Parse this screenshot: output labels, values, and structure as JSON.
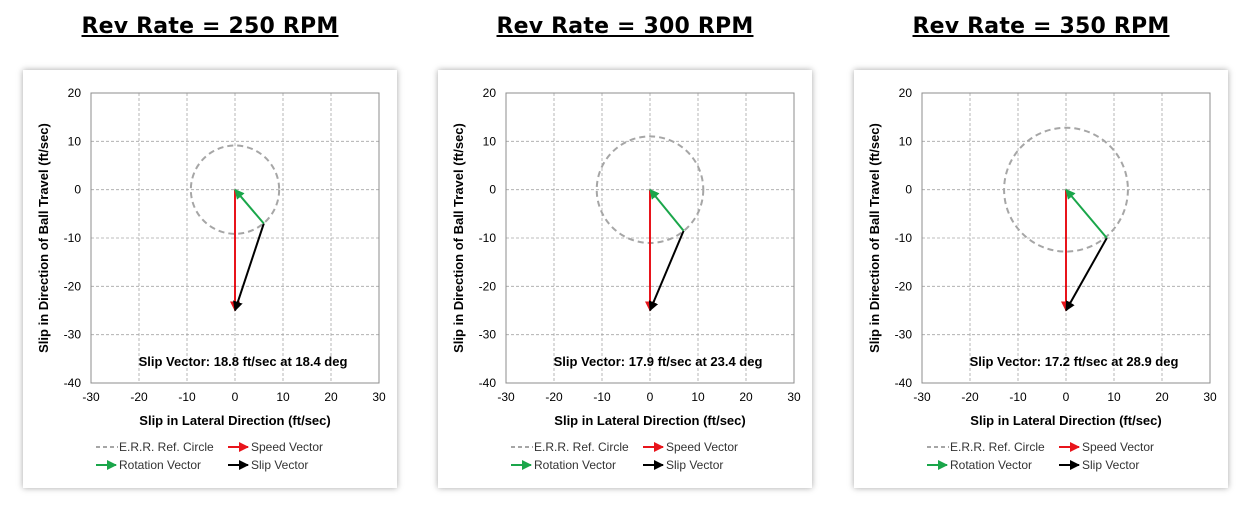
{
  "chart_data": [
    {
      "type": "scatter",
      "title": "Rev Rate = 250 RPM",
      "xlabel": "Slip in Lateral Direction (ft/sec)",
      "ylabel": "Slip in Direction of Ball Travel (ft/sec)",
      "xlim": [
        -30,
        30
      ],
      "ylim": [
        -40,
        20
      ],
      "xticks": [
        "-30",
        "-20",
        "-10",
        "0",
        "10",
        "20",
        "30"
      ],
      "yticks": [
        "20",
        "10",
        "0",
        "-10",
        "-20",
        "-30",
        "-40"
      ],
      "grid": true,
      "ref_circle_radius": 9.2,
      "speed_vector": {
        "from": [
          0,
          0
        ],
        "to": [
          0,
          -25
        ]
      },
      "rotation_vector": {
        "from": [
          6,
          -7
        ],
        "to": [
          0,
          0
        ]
      },
      "slip_vector": {
        "from": [
          6,
          -7
        ],
        "to": [
          0,
          -25
        ]
      },
      "annotation": "Slip Vector:  18.8  ft/sec at  18.4 deg",
      "legend": [
        "E.R.R. Ref. Circle",
        "Speed Vector",
        "Rotation Vector",
        "Slip Vector"
      ]
    },
    {
      "type": "scatter",
      "title": "Rev Rate = 300 RPM",
      "xlabel": "Slip in Lateral Direction (ft/sec)",
      "ylabel": "Slip in Direction of Ball Travel (ft/sec)",
      "xlim": [
        -30,
        30
      ],
      "ylim": [
        -40,
        20
      ],
      "xticks": [
        "-30",
        "-20",
        "-10",
        "0",
        "10",
        "20",
        "30"
      ],
      "yticks": [
        "20",
        "10",
        "0",
        "-10",
        "-20",
        "-30",
        "-40"
      ],
      "grid": true,
      "ref_circle_radius": 11.1,
      "speed_vector": {
        "from": [
          0,
          0
        ],
        "to": [
          0,
          -25
        ]
      },
      "rotation_vector": {
        "from": [
          7,
          -8.5
        ],
        "to": [
          0,
          0
        ]
      },
      "slip_vector": {
        "from": [
          7,
          -8.5
        ],
        "to": [
          0,
          -25
        ]
      },
      "annotation": "Slip Vector:  17.9  ft/sec at  23.4 deg",
      "legend": [
        "E.R.R. Ref. Circle",
        "Speed Vector",
        "Rotation Vector",
        "Slip Vector"
      ]
    },
    {
      "type": "scatter",
      "title": "Rev Rate = 350 RPM",
      "xlabel": "Slip in Lateral Direction (ft/sec)",
      "ylabel": "Slip in Direction of Ball Travel (ft/sec)",
      "xlim": [
        -30,
        30
      ],
      "ylim": [
        -40,
        20
      ],
      "xticks": [
        "-30",
        "-20",
        "-10",
        "0",
        "10",
        "20",
        "30"
      ],
      "yticks": [
        "20",
        "10",
        "0",
        "-10",
        "-20",
        "-30",
        "-40"
      ],
      "grid": true,
      "ref_circle_radius": 12.9,
      "speed_vector": {
        "from": [
          0,
          0
        ],
        "to": [
          0,
          -25
        ]
      },
      "rotation_vector": {
        "from": [
          8.5,
          -10
        ],
        "to": [
          0,
          0
        ]
      },
      "slip_vector": {
        "from": [
          8.5,
          -10
        ],
        "to": [
          0,
          -25
        ]
      },
      "annotation": "Slip Vector:  17.2  ft/sec at  28.9 deg",
      "legend": [
        "E.R.R. Ref. Circle",
        "Speed Vector",
        "Rotation Vector",
        "Slip Vector"
      ]
    }
  ],
  "colors": {
    "speed": "#e8141b",
    "rotation": "#1aa64a",
    "slip": "#000000",
    "circle": "#a6a6a6",
    "grid": "#a6a6a6"
  }
}
